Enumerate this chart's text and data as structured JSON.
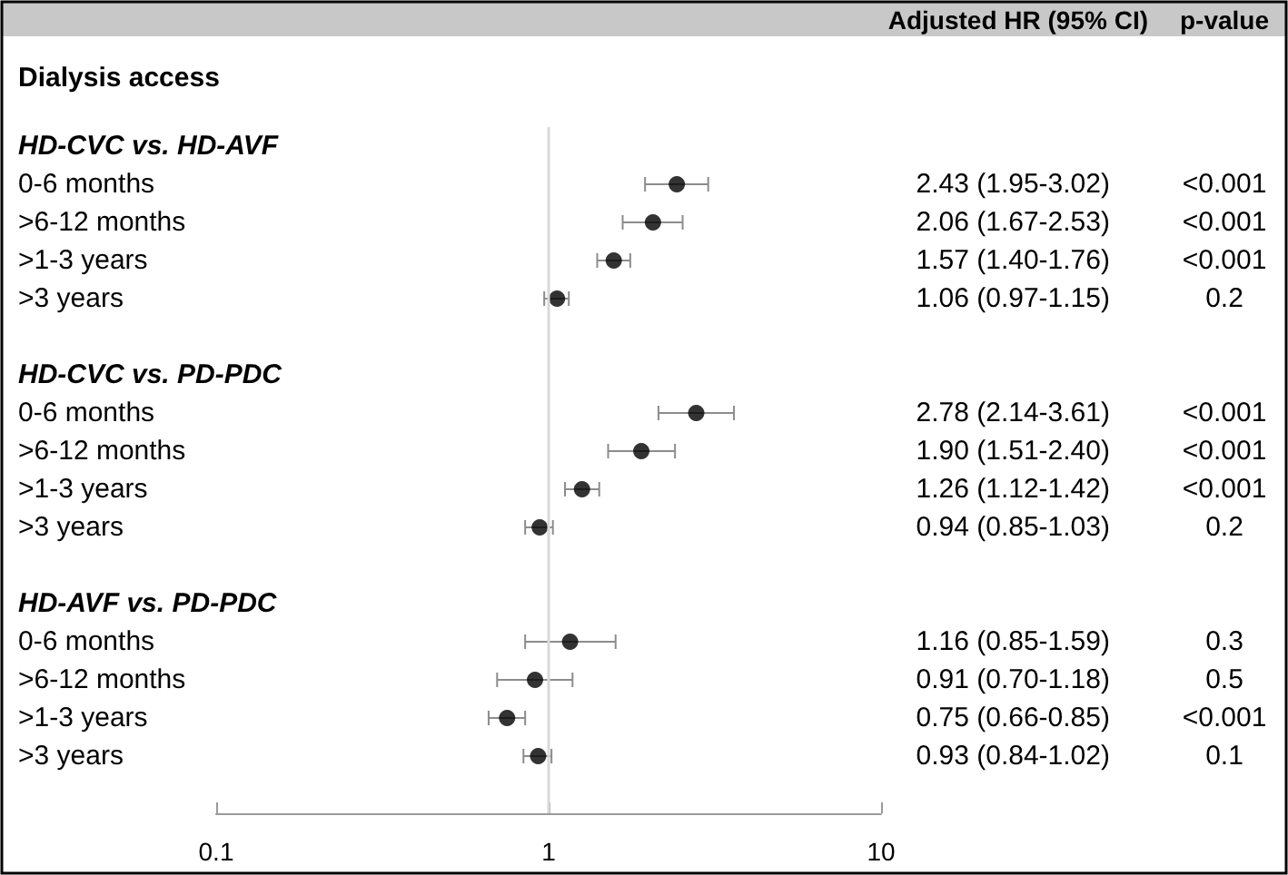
{
  "chart_data": {
    "type": "scatter",
    "title": "Dialysis access",
    "orientation": "horizontal",
    "log": "x",
    "categories": [
      "HD-CVC vs. HD-AVF",
      "0-6 months",
      ">6-12 months",
      ">1-3 years",
      ">3 years",
      null,
      "HD-CVC vs. PD-PDC",
      "0-6 months",
      ">6-12 months",
      ">1-3 years",
      ">3 years",
      null,
      "HD-AVF vs. PD-PDC",
      "0-6 months",
      ">6-12 months",
      ">1-3 years",
      ">3 years",
      null
    ],
    "series": [
      {
        "color": "#000000",
        "values": [
          null,
          2.43,
          2.06,
          1.57,
          1.06,
          null,
          null,
          2.78,
          1.9,
          1.26,
          0.94,
          null,
          null,
          1.16,
          0.91,
          0.75,
          0.93,
          null
        ],
        "errors": [
          null,
          [
            1.95,
            3.02
          ],
          [
            1.67,
            2.53
          ],
          [
            1.4,
            1.76
          ],
          [
            0.97,
            1.15
          ],
          null,
          null,
          [
            2.14,
            3.61
          ],
          [
            1.51,
            2.4
          ],
          [
            1.12,
            1.42
          ],
          [
            0.85,
            1.03
          ],
          null,
          null,
          [
            0.85,
            1.59
          ],
          [
            0.7,
            1.18
          ],
          [
            0.66,
            0.85
          ],
          [
            0.84,
            1.02
          ],
          null
        ],
        "value_labels": [
          null,
          "2.43 (1.95-3.02)",
          "2.06 (1.67-2.53)",
          "1.57 (1.40-1.76)",
          "1.06 (0.97-1.15)",
          null,
          null,
          "2.78 (2.14-3.61)",
          "1.90 (1.51-2.40)",
          "1.26 (1.12-1.42)",
          "0.94 (0.85-1.03)",
          null,
          null,
          "1.16 (0.85-1.59)",
          "0.91 (0.70-1.18)",
          "0.75 (0.66-0.85)",
          "0.93 (0.84-1.02)",
          null
        ]
      }
    ],
    "annotations": [
      "Adjusted HR (95% CI)",
      "p-value",
      "<0.001",
      "<0.001",
      "<0.001",
      "0.2",
      "<0.001",
      "<0.001",
      "<0.001",
      "0.2",
      "0.3",
      "0.5",
      "<0.001",
      "0.1"
    ],
    "xlim": [
      0.1,
      10
    ],
    "xticks": [
      0.1,
      1,
      10
    ],
    "ref_lines": [
      {
        "axis": "x",
        "value": 1,
        "color": "#d9d9d9"
      }
    ],
    "marker": "circle",
    "grid": false
  }
}
